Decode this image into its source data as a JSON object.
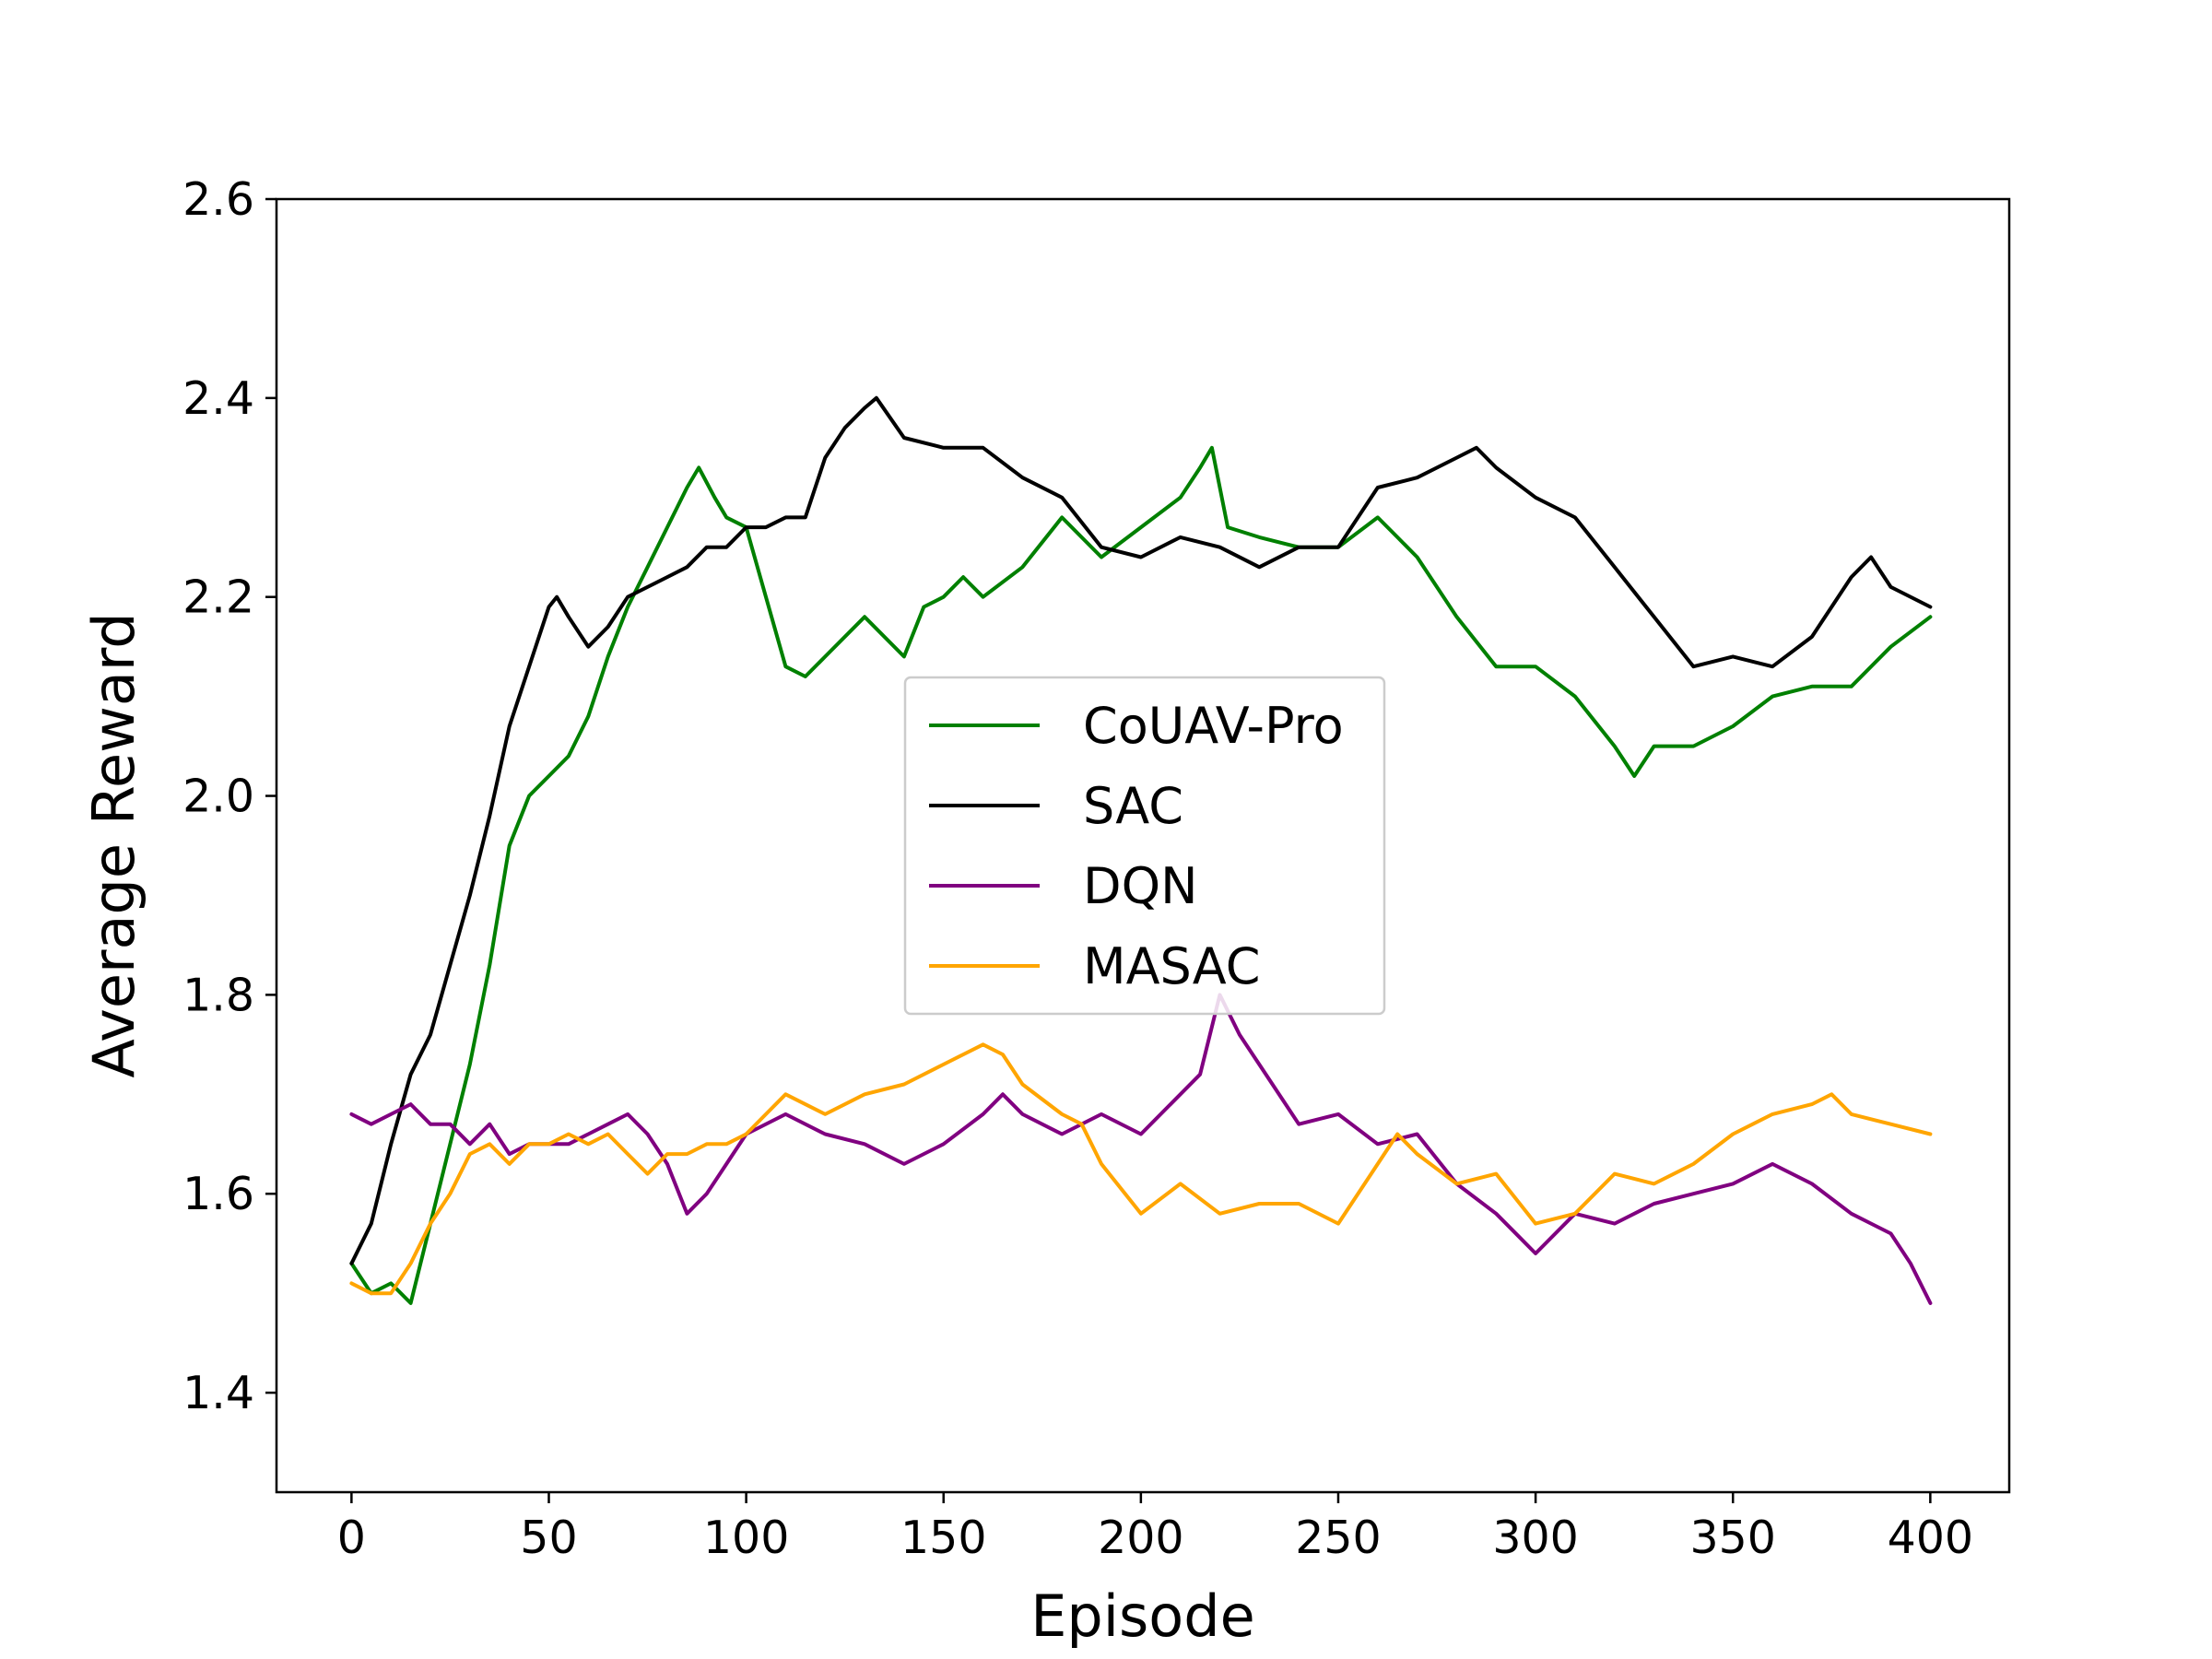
{
  "chart_data": {
    "type": "line",
    "title": "",
    "xlabel": "Episode",
    "ylabel": "Average Reward",
    "xlim": [
      -19,
      420
    ],
    "ylim": [
      1.3,
      2.6
    ],
    "xticks": [
      0,
      50,
      100,
      150,
      200,
      250,
      300,
      350,
      400
    ],
    "xtick_labels": [
      "0",
      "50",
      "100",
      "150",
      "200",
      "250",
      "300",
      "350",
      "400"
    ],
    "yticks": [
      1.4,
      1.6,
      1.8,
      2.0,
      2.2,
      2.4,
      2.6
    ],
    "ytick_labels": [
      "1.4",
      "1.6",
      "1.8",
      "2.0",
      "2.2",
      "2.4",
      "2.6"
    ],
    "grid": false,
    "legend_position": "center",
    "series": [
      {
        "name": "CoUAV-Pro",
        "color": "#008000",
        "x": [
          0,
          5,
          10,
          15,
          20,
          25,
          30,
          35,
          40,
          45,
          50,
          55,
          60,
          65,
          70,
          75,
          80,
          85,
          88,
          92,
          95,
          100,
          105,
          110,
          115,
          120,
          130,
          140,
          145,
          150,
          155,
          160,
          170,
          180,
          190,
          200,
          210,
          215,
          218,
          222,
          230,
          240,
          250,
          260,
          265,
          270,
          280,
          290,
          300,
          310,
          320,
          325,
          330,
          340,
          350,
          360,
          370,
          380,
          390,
          400
        ],
        "y": [
          1.53,
          1.5,
          1.51,
          1.49,
          1.57,
          1.65,
          1.73,
          1.83,
          1.95,
          2.0,
          2.02,
          2.04,
          2.08,
          2.14,
          2.19,
          2.23,
          2.27,
          2.31,
          2.33,
          2.3,
          2.28,
          2.27,
          2.2,
          2.13,
          2.12,
          2.14,
          2.18,
          2.14,
          2.19,
          2.2,
          2.22,
          2.2,
          2.23,
          2.28,
          2.24,
          2.27,
          2.3,
          2.33,
          2.35,
          2.27,
          2.26,
          2.25,
          2.25,
          2.28,
          2.26,
          2.24,
          2.18,
          2.13,
          2.13,
          2.1,
          2.05,
          2.02,
          2.05,
          2.05,
          2.07,
          2.1,
          2.11,
          2.11,
          2.15,
          2.18
        ]
      },
      {
        "name": "SAC",
        "color": "#000000",
        "x": [
          0,
          5,
          10,
          15,
          20,
          25,
          30,
          35,
          40,
          45,
          50,
          52,
          55,
          60,
          65,
          70,
          75,
          80,
          85,
          90,
          95,
          100,
          105,
          110,
          115,
          120,
          125,
          130,
          133,
          140,
          150,
          160,
          170,
          180,
          190,
          200,
          210,
          220,
          230,
          240,
          250,
          260,
          270,
          280,
          285,
          290,
          300,
          310,
          320,
          330,
          340,
          350,
          360,
          370,
          380,
          385,
          390,
          400
        ],
        "y": [
          1.53,
          1.57,
          1.65,
          1.72,
          1.76,
          1.83,
          1.9,
          1.98,
          2.07,
          2.13,
          2.19,
          2.2,
          2.18,
          2.15,
          2.17,
          2.2,
          2.21,
          2.22,
          2.23,
          2.25,
          2.25,
          2.27,
          2.27,
          2.28,
          2.28,
          2.34,
          2.37,
          2.39,
          2.4,
          2.36,
          2.35,
          2.35,
          2.32,
          2.3,
          2.25,
          2.24,
          2.26,
          2.25,
          2.23,
          2.25,
          2.25,
          2.31,
          2.32,
          2.34,
          2.35,
          2.33,
          2.3,
          2.28,
          2.23,
          2.18,
          2.13,
          2.14,
          2.13,
          2.16,
          2.22,
          2.24,
          2.21,
          2.19
        ]
      },
      {
        "name": "DQN",
        "color": "#800080",
        "x": [
          0,
          5,
          10,
          15,
          20,
          25,
          30,
          35,
          40,
          45,
          50,
          55,
          60,
          65,
          70,
          75,
          80,
          85,
          90,
          95,
          100,
          110,
          120,
          130,
          140,
          150,
          160,
          165,
          170,
          180,
          190,
          200,
          210,
          215,
          220,
          225,
          230,
          240,
          250,
          260,
          270,
          280,
          290,
          300,
          310,
          320,
          330,
          340,
          350,
          360,
          370,
          380,
          390,
          395,
          400
        ],
        "y": [
          1.68,
          1.67,
          1.68,
          1.69,
          1.67,
          1.67,
          1.65,
          1.67,
          1.64,
          1.65,
          1.65,
          1.65,
          1.66,
          1.67,
          1.68,
          1.66,
          1.63,
          1.58,
          1.6,
          1.63,
          1.66,
          1.68,
          1.66,
          1.65,
          1.63,
          1.65,
          1.68,
          1.7,
          1.68,
          1.66,
          1.68,
          1.66,
          1.7,
          1.72,
          1.8,
          1.76,
          1.73,
          1.67,
          1.68,
          1.65,
          1.66,
          1.61,
          1.58,
          1.54,
          1.58,
          1.57,
          1.59,
          1.6,
          1.61,
          1.63,
          1.61,
          1.58,
          1.56,
          1.53,
          1.49
        ]
      },
      {
        "name": "MASAC",
        "color": "#FFA500",
        "x": [
          0,
          5,
          10,
          15,
          20,
          25,
          30,
          35,
          40,
          45,
          50,
          55,
          60,
          65,
          70,
          75,
          80,
          85,
          90,
          95,
          100,
          105,
          110,
          120,
          130,
          140,
          150,
          155,
          160,
          165,
          170,
          180,
          185,
          190,
          200,
          210,
          220,
          230,
          240,
          250,
          260,
          265,
          270,
          280,
          290,
          300,
          310,
          320,
          330,
          340,
          350,
          360,
          370,
          375,
          380,
          390,
          400
        ],
        "y": [
          1.51,
          1.5,
          1.5,
          1.53,
          1.57,
          1.6,
          1.64,
          1.65,
          1.63,
          1.65,
          1.65,
          1.66,
          1.65,
          1.66,
          1.64,
          1.62,
          1.64,
          1.64,
          1.65,
          1.65,
          1.66,
          1.68,
          1.7,
          1.68,
          1.7,
          1.71,
          1.73,
          1.74,
          1.75,
          1.74,
          1.71,
          1.68,
          1.67,
          1.63,
          1.58,
          1.61,
          1.58,
          1.59,
          1.59,
          1.57,
          1.63,
          1.66,
          1.64,
          1.61,
          1.62,
          1.57,
          1.58,
          1.62,
          1.61,
          1.63,
          1.66,
          1.68,
          1.69,
          1.7,
          1.68,
          1.67,
          1.66
        ]
      }
    ]
  }
}
